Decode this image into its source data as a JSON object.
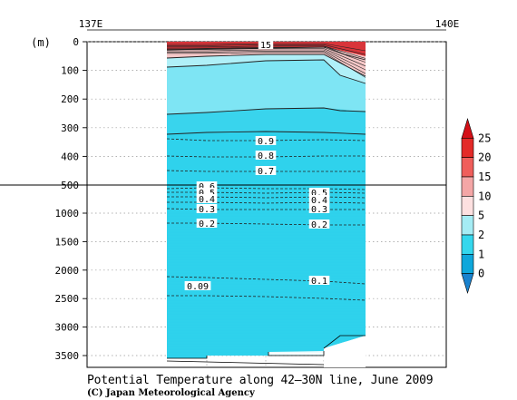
{
  "chart_data": {
    "type": "contour",
    "title": "Potential Temperature along 42–30N line, June 2009",
    "credit": "(C) Japan Meteorological Agency",
    "top_axis_ticks": [
      "137E",
      "140E"
    ],
    "y_unit": "(m)",
    "y_ticks_upper": [
      0,
      100,
      200,
      300,
      400,
      500
    ],
    "y_ticks_lower": [
      1000,
      1500,
      2000,
      2500,
      3000,
      3500
    ],
    "y_break_depth": 500,
    "contour_labels": [
      {
        "text": "15",
        "depth": 2
      },
      {
        "text": "0.9",
        "depth": 340
      },
      {
        "text": "0.8",
        "depth": 390
      },
      {
        "text": "0.7",
        "depth": 440
      },
      {
        "text": "0.6",
        "depth": 520
      },
      {
        "text": "0.5",
        "depth": 560
      },
      {
        "text": "0.4",
        "depth": 600
      },
      {
        "text": "0.5",
        "depth": 620
      },
      {
        "text": "0.4",
        "depth": 660
      },
      {
        "text": "0.3",
        "depth": 900
      },
      {
        "text": "0.3",
        "depth": 900
      },
      {
        "text": "0.2",
        "depth": 1200
      },
      {
        "text": "0.2",
        "depth": 1230
      },
      {
        "text": "0.1",
        "depth": 2200
      },
      {
        "text": "0.09",
        "depth": 2300
      }
    ],
    "colorbar": {
      "levels": [
        "25",
        "20",
        "15",
        "10",
        "5",
        "2",
        "1",
        "0"
      ],
      "colors": [
        "#d40f17",
        "#e32a28",
        "#ef5e5b",
        "#f4a6a6",
        "#fde0e0",
        "#a5ecf4",
        "#34d7ed",
        "#0fa7db",
        "#1a82ce"
      ]
    },
    "fill_colors": {
      "deep": "#2fd2ec",
      "mid": "#39d4ed",
      "upper": "#7ee5f4",
      "surface": "#b0f0f8",
      "warm": "#f6c8c8",
      "hot": "#d9353a"
    }
  }
}
